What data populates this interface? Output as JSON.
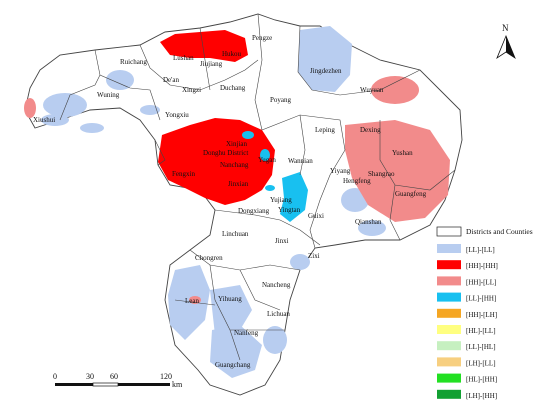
{
  "map": {
    "place_names": [
      "Pengze",
      "Ruichang",
      "Lushan",
      "Hukou",
      "Jiujiang",
      "De'an",
      "Xingzi",
      "Duchang",
      "Wuning",
      "Xiushui",
      "Yongxiu",
      "Jingdezhen",
      "Wuyuan",
      "Poyang",
      "Leping",
      "Dexing",
      "Xinjian",
      "Donghu District",
      "Nanchang",
      "Fengxin",
      "Jinxian",
      "Yugan",
      "Wannian",
      "Yushan",
      "Shangrao",
      "Hengfeng",
      "Yiyang",
      "Guangfeng",
      "Yujiang",
      "Yingtan",
      "Dongxiang",
      "Guixi",
      "Qianshan",
      "Linchuan",
      "Jinxi",
      "Zixi",
      "Chongren",
      "Lean",
      "Yihuang",
      "Nancheng",
      "Nanfeng",
      "Lichuan",
      "Guangchang"
    ],
    "colors": {
      "ll_ll": "#b8cdf0",
      "hh_hh": "#ff0000",
      "hh_ll": "#f28b8b",
      "ll_hh": "#18c0f0",
      "outline": "#444444"
    }
  },
  "north_arrow": {
    "label": "N"
  },
  "scale_bar": {
    "ticks": [
      "0",
      "30",
      "60",
      "120"
    ],
    "unit": "km"
  },
  "legend": {
    "title": "Districts and Counties",
    "items": [
      {
        "label": "[LL]-[LL]",
        "color": "#b8cdf0"
      },
      {
        "label": "[HH]-[HH]",
        "color": "#ff0000"
      },
      {
        "label": "[HH]-[LL]",
        "color": "#f28b8b"
      },
      {
        "label": "[LL]-[HH]",
        "color": "#18c0f0"
      },
      {
        "label": "[HH]-[LH]",
        "color": "#f5a623"
      },
      {
        "label": "[HL]-[LL]",
        "color": "#ffff80"
      },
      {
        "label": "[LL]-[HL]",
        "color": "#c6f0c0"
      },
      {
        "label": "[LH]-[LL]",
        "color": "#f7cf80"
      },
      {
        "label": "[HL]-[HH]",
        "color": "#22e022"
      },
      {
        "label": "[LH]-[HH]",
        "color": "#12a032"
      }
    ]
  }
}
